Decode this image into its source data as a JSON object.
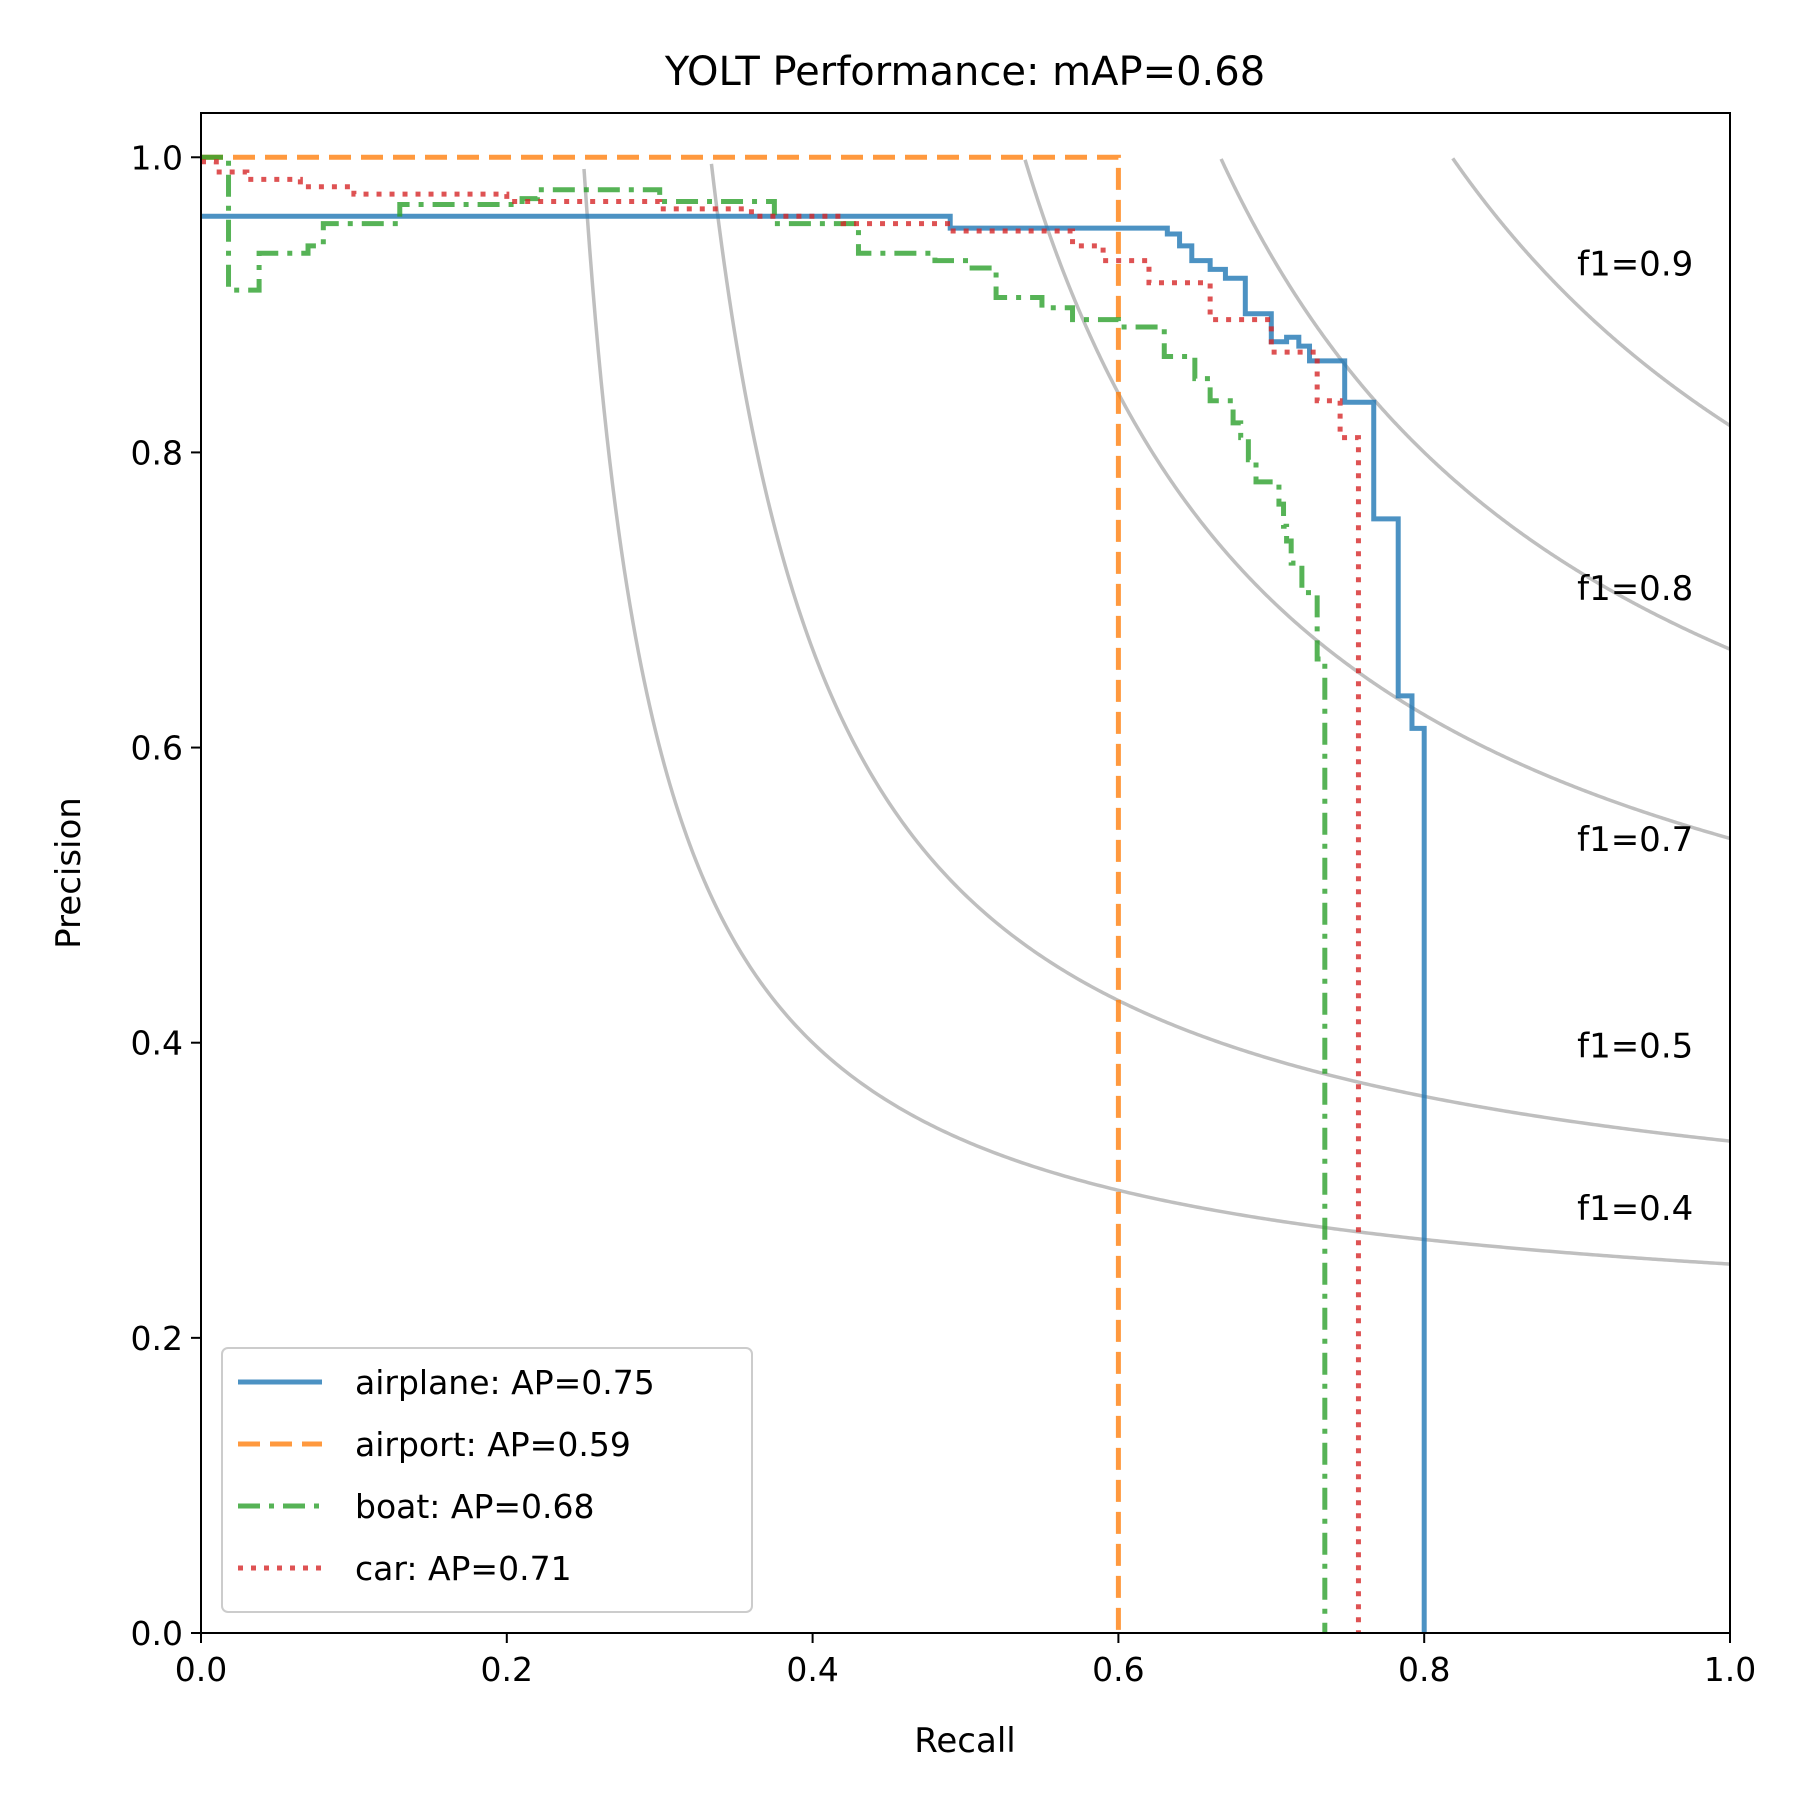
{
  "chart_data": {
    "type": "line",
    "title": "YOLT Performance:  mAP=0.68",
    "xlabel": "Recall",
    "ylabel": "Precision",
    "xlim": [
      0.0,
      1.0
    ],
    "ylim": [
      0.0,
      1.03
    ],
    "xticks": [
      0.0,
      0.2,
      0.4,
      0.6,
      0.8,
      1.0
    ],
    "yticks": [
      0.0,
      0.2,
      0.4,
      0.6,
      0.8,
      1.0
    ],
    "xtick_labels": [
      "0.0",
      "0.2",
      "0.4",
      "0.6",
      "0.8",
      "1.0"
    ],
    "ytick_labels": [
      "0.0",
      "0.2",
      "0.4",
      "0.6",
      "0.8",
      "1.0"
    ],
    "grid": false,
    "legend_position": "lower-left",
    "iso_f1": [
      {
        "f1": 0.4,
        "label": "f1=0.4",
        "label_y": 0.28
      },
      {
        "f1": 0.5,
        "label": "f1=0.5",
        "label_y": 0.39
      },
      {
        "f1": 0.7,
        "label": "f1=0.7",
        "label_y": 0.53
      },
      {
        "f1": 0.8,
        "label": "f1=0.8",
        "label_y": 0.7
      },
      {
        "f1": 0.9,
        "label": "f1=0.9",
        "label_y": 0.92
      }
    ],
    "series": [
      {
        "name": "airplane: AP=0.75",
        "color": "#1f77b4",
        "style": "solid",
        "x": [
          0.0,
          0.49,
          0.49,
          0.632,
          0.632,
          0.64,
          0.64,
          0.648,
          0.648,
          0.66,
          0.66,
          0.67,
          0.67,
          0.683,
          0.683,
          0.7,
          0.7,
          0.71,
          0.71,
          0.718,
          0.718,
          0.725,
          0.725,
          0.748,
          0.748,
          0.767,
          0.767,
          0.783,
          0.783,
          0.792,
          0.792,
          0.8,
          0.8
        ],
        "y": [
          0.96,
          0.96,
          0.952,
          0.952,
          0.948,
          0.948,
          0.94,
          0.94,
          0.93,
          0.93,
          0.924,
          0.924,
          0.918,
          0.918,
          0.894,
          0.894,
          0.875,
          0.875,
          0.878,
          0.878,
          0.872,
          0.872,
          0.862,
          0.862,
          0.834,
          0.834,
          0.755,
          0.755,
          0.635,
          0.635,
          0.613,
          0.613,
          0.0
        ]
      },
      {
        "name": "airport: AP=0.59",
        "color": "#ff7f0e",
        "style": "dashed",
        "x": [
          0.0,
          0.6,
          0.6
        ],
        "y": [
          1.0,
          1.0,
          0.0
        ]
      },
      {
        "name": "boat: AP=0.68",
        "color": "#2ca02c",
        "style": "dashdot",
        "x": [
          0.0,
          0.018,
          0.018,
          0.038,
          0.038,
          0.07,
          0.07,
          0.08,
          0.08,
          0.13,
          0.13,
          0.21,
          0.21,
          0.22,
          0.22,
          0.3,
          0.3,
          0.375,
          0.375,
          0.43,
          0.43,
          0.48,
          0.48,
          0.5,
          0.5,
          0.52,
          0.52,
          0.55,
          0.55,
          0.57,
          0.57,
          0.6,
          0.6,
          0.63,
          0.63,
          0.65,
          0.65,
          0.66,
          0.66,
          0.675,
          0.675,
          0.68,
          0.68,
          0.685,
          0.685,
          0.69,
          0.69,
          0.705,
          0.705,
          0.708,
          0.708,
          0.71,
          0.71,
          0.713,
          0.713,
          0.72,
          0.72,
          0.73,
          0.73,
          0.735,
          0.735
        ],
        "y": [
          1.0,
          1.0,
          0.91,
          0.91,
          0.935,
          0.935,
          0.94,
          0.94,
          0.955,
          0.955,
          0.968,
          0.968,
          0.972,
          0.972,
          0.978,
          0.978,
          0.97,
          0.97,
          0.955,
          0.955,
          0.935,
          0.935,
          0.93,
          0.93,
          0.925,
          0.925,
          0.905,
          0.905,
          0.898,
          0.898,
          0.89,
          0.89,
          0.885,
          0.885,
          0.865,
          0.865,
          0.85,
          0.85,
          0.835,
          0.835,
          0.82,
          0.82,
          0.81,
          0.81,
          0.795,
          0.795,
          0.78,
          0.78,
          0.765,
          0.765,
          0.75,
          0.75,
          0.74,
          0.74,
          0.725,
          0.725,
          0.705,
          0.705,
          0.66,
          0.66,
          0.0
        ]
      },
      {
        "name": "car: AP=0.71",
        "color": "#d62728",
        "style": "dotted",
        "x": [
          0.0,
          0.01,
          0.01,
          0.03,
          0.03,
          0.065,
          0.065,
          0.1,
          0.1,
          0.2,
          0.2,
          0.3,
          0.3,
          0.36,
          0.36,
          0.42,
          0.42,
          0.49,
          0.49,
          0.57,
          0.57,
          0.59,
          0.59,
          0.62,
          0.62,
          0.66,
          0.66,
          0.7,
          0.7,
          0.73,
          0.73,
          0.745,
          0.745,
          0.757,
          0.757
        ],
        "y": [
          0.997,
          0.997,
          0.99,
          0.99,
          0.985,
          0.985,
          0.98,
          0.98,
          0.975,
          0.975,
          0.97,
          0.97,
          0.965,
          0.965,
          0.96,
          0.96,
          0.955,
          0.955,
          0.95,
          0.95,
          0.94,
          0.94,
          0.93,
          0.93,
          0.915,
          0.915,
          0.89,
          0.89,
          0.868,
          0.868,
          0.835,
          0.835,
          0.81,
          0.81,
          0.0
        ]
      }
    ]
  }
}
